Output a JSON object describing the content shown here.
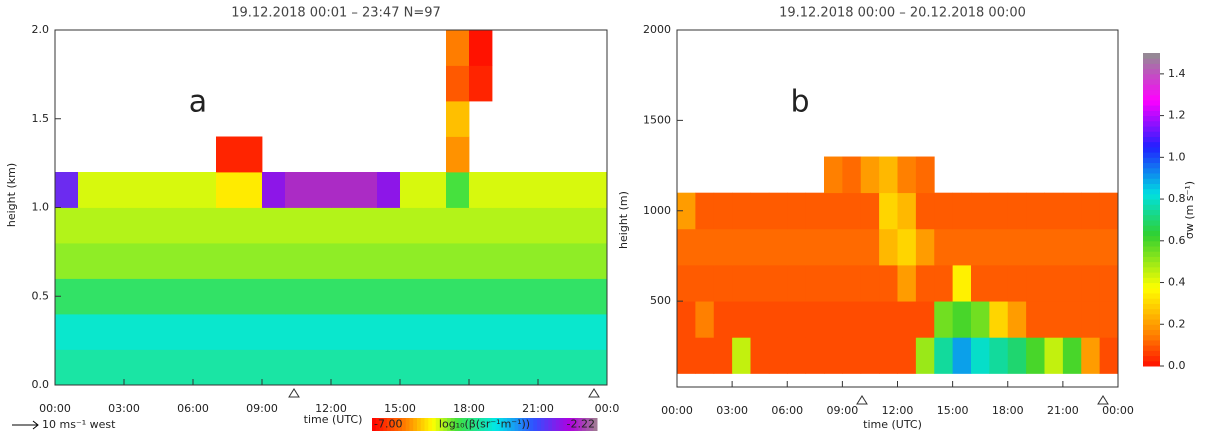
{
  "chart_data": [
    {
      "type": "heatmap",
      "title": "19.12.2018 00:01 – 23:47 N=97",
      "panel_label": "a",
      "x_label": "time (UTC)",
      "y_label": "height (km)",
      "y2_label": "height (m)",
      "wind_scale_label": "10 ms⁻¹ west",
      "xlim": [
        0,
        24
      ],
      "ylim": [
        0,
        2
      ],
      "xticks": [
        {
          "value": 0,
          "label": "00:00"
        },
        {
          "value": 3,
          "label": "03:00"
        },
        {
          "value": 6,
          "label": "06:00"
        },
        {
          "value": 9,
          "label": "09:00"
        },
        {
          "value": 12,
          "label": "12:00"
        },
        {
          "value": 15,
          "label": "15:00"
        },
        {
          "value": 18,
          "label": "18:00"
        },
        {
          "value": 21,
          "label": "21:00"
        },
        {
          "value": 24,
          "label": "00:0"
        }
      ],
      "yticks": [
        {
          "value": 0,
          "label": "0.0"
        },
        0.5,
        {
          "value": 1,
          "label": "1.0"
        },
        1.5,
        {
          "value": 2,
          "label": "2.0"
        }
      ],
      "x_edges": [
        0,
        1,
        2,
        3,
        4,
        5,
        6,
        7,
        8,
        9,
        10,
        11,
        12,
        13,
        14,
        15,
        16,
        17,
        18,
        19,
        20,
        21,
        22,
        23,
        24
      ],
      "y_edges": [
        0,
        0.2,
        0.4,
        0.6,
        0.8,
        1.0,
        1.2,
        1.4,
        1.6,
        1.8,
        2.0
      ],
      "z": [
        [
          -4.7,
          -4.7,
          -4.7,
          -4.7,
          -4.7,
          -4.7,
          -4.7,
          -4.7,
          -4.7,
          -4.7,
          -4.7,
          -4.7,
          -4.7,
          -4.7,
          -4.7,
          -4.7,
          -4.7,
          -4.7,
          -4.7,
          -4.7,
          -4.7,
          -4.7,
          -4.7,
          -4.7
        ],
        [
          -4.5,
          -4.5,
          -4.5,
          -4.5,
          -4.5,
          -4.5,
          -4.5,
          -4.5,
          -4.5,
          -4.5,
          -4.5,
          -4.5,
          -4.5,
          -4.5,
          -4.5,
          -4.5,
          -4.5,
          -4.5,
          -4.5,
          -4.5,
          -4.5,
          -4.5,
          -4.5,
          -4.5
        ],
        [
          -5.0,
          -5.0,
          -5.0,
          -5.0,
          -5.0,
          -5.0,
          -5.0,
          -5.0,
          -5.0,
          -5.0,
          -5.0,
          -5.0,
          -5.0,
          -5.0,
          -5.0,
          -5.0,
          -5.0,
          -5.0,
          -5.0,
          -5.0,
          -5.0,
          -5.0,
          -5.0,
          -5.0
        ],
        [
          -5.4,
          -5.4,
          -5.4,
          -5.4,
          -5.4,
          -5.4,
          -5.4,
          -5.4,
          -5.4,
          -5.4,
          -5.4,
          -5.4,
          -5.4,
          -5.4,
          -5.4,
          -5.4,
          -5.4,
          -5.4,
          -5.4,
          -5.4,
          -5.4,
          -5.4,
          -5.4,
          -5.4
        ],
        [
          -5.5,
          -5.5,
          -5.5,
          -5.5,
          -5.5,
          -5.5,
          -5.5,
          -5.5,
          -5.5,
          -5.5,
          -5.5,
          -5.5,
          -5.5,
          -5.5,
          -5.5,
          -5.5,
          -5.5,
          -5.5,
          -5.5,
          -5.5,
          -5.5,
          -5.5,
          -5.5,
          -5.5
        ],
        [
          -3.2,
          -5.6,
          -5.6,
          -5.6,
          -5.6,
          -5.6,
          -5.6,
          -5.8,
          -5.8,
          -3.0,
          -2.6,
          -2.6,
          -2.6,
          -2.6,
          -3.0,
          -5.6,
          -5.6,
          -5.2,
          -5.6,
          -5.6,
          -5.6,
          -5.6,
          -5.6,
          -5.6
        ],
        [
          null,
          null,
          null,
          null,
          null,
          null,
          null,
          -6.8,
          -6.8,
          null,
          null,
          null,
          null,
          null,
          null,
          null,
          null,
          -6.2,
          null,
          null,
          null,
          null,
          null,
          null
        ],
        [
          null,
          null,
          null,
          null,
          null,
          null,
          null,
          null,
          null,
          null,
          null,
          null,
          null,
          null,
          null,
          null,
          null,
          -6.0,
          null,
          null,
          null,
          null,
          null,
          null
        ],
        [
          null,
          null,
          null,
          null,
          null,
          null,
          null,
          null,
          null,
          null,
          null,
          null,
          null,
          null,
          null,
          null,
          null,
          -6.5,
          -6.8,
          null,
          null,
          null,
          null,
          null
        ],
        [
          null,
          null,
          null,
          null,
          null,
          null,
          null,
          null,
          null,
          null,
          null,
          null,
          null,
          null,
          null,
          null,
          null,
          -6.3,
          -6.9,
          null,
          null,
          null,
          null,
          null
        ]
      ],
      "colorbar": {
        "label": "log₁₀(β(sr⁻¹m⁻¹))",
        "lim": [
          -7,
          -2.22
        ],
        "ticks": [
          {
            "value": -7,
            "label": "-7.00"
          },
          {
            "value": -2.22,
            "label": "-2.22"
          }
        ]
      }
    },
    {
      "type": "heatmap",
      "title": "19.12.2018 00:00 – 20.12.2018 00:00",
      "panel_label": "b",
      "x_label": "time (UTC)",
      "xlim": [
        0,
        24
      ],
      "ylim": [
        25,
        2000
      ],
      "xticks": [
        {
          "value": 0,
          "label": "00:00"
        },
        {
          "value": 3,
          "label": "03:00"
        },
        {
          "value": 6,
          "label": "06:00"
        },
        {
          "value": 9,
          "label": "09:00"
        },
        {
          "value": 12,
          "label": "12:00"
        },
        {
          "value": 15,
          "label": "15:00"
        },
        {
          "value": 18,
          "label": "18:00"
        },
        {
          "value": 21,
          "label": "21:00"
        },
        {
          "value": 24,
          "label": "00:00"
        }
      ],
      "yticks": [
        500,
        1000,
        1500,
        2000
      ],
      "x_edges": [
        0,
        1,
        2,
        3,
        4,
        5,
        6,
        7,
        8,
        9,
        10,
        11,
        12,
        13,
        14,
        15,
        16,
        17,
        18,
        19,
        20,
        21,
        22,
        23,
        24
      ],
      "y_edges": [
        100,
        300,
        500,
        700,
        900,
        1100,
        1300
      ],
      "z": [
        [
          0.08,
          0.08,
          0.08,
          0.45,
          0.08,
          0.08,
          0.08,
          0.08,
          0.08,
          0.08,
          0.08,
          0.08,
          0.08,
          0.5,
          0.75,
          0.9,
          0.8,
          0.75,
          0.7,
          0.6,
          0.45,
          0.6,
          0.2,
          0.08
        ],
        [
          0.08,
          0.15,
          0.08,
          0.08,
          0.08,
          0.08,
          0.08,
          0.08,
          0.08,
          0.08,
          0.08,
          0.08,
          0.08,
          0.08,
          0.55,
          0.6,
          0.55,
          0.3,
          0.2,
          0.1,
          0.1,
          0.1,
          0.1,
          0.1
        ],
        [
          0.1,
          0.1,
          0.1,
          0.1,
          0.1,
          0.1,
          0.1,
          0.1,
          0.1,
          0.1,
          0.1,
          0.1,
          0.2,
          0.1,
          0.1,
          0.35,
          0.1,
          0.1,
          0.1,
          0.1,
          0.1,
          0.1,
          0.1,
          0.1
        ],
        [
          0.12,
          0.12,
          0.12,
          0.12,
          0.12,
          0.12,
          0.12,
          0.12,
          0.12,
          0.12,
          0.12,
          0.25,
          0.3,
          0.2,
          0.12,
          0.12,
          0.12,
          0.12,
          0.12,
          0.12,
          0.12,
          0.12,
          0.12,
          0.12
        ],
        [
          0.2,
          0.1,
          0.1,
          0.1,
          0.1,
          0.1,
          0.1,
          0.1,
          0.1,
          0.1,
          0.1,
          0.3,
          0.25,
          0.1,
          0.1,
          0.1,
          0.1,
          0.1,
          0.1,
          0.1,
          0.1,
          0.1,
          0.1,
          0.1
        ],
        [
          null,
          null,
          null,
          null,
          null,
          null,
          null,
          null,
          0.15,
          0.12,
          0.2,
          0.25,
          0.15,
          0.12,
          null,
          null,
          null,
          null,
          null,
          null,
          null,
          null,
          null,
          null
        ]
      ],
      "colorbar": {
        "label": "σw (m s⁻¹)",
        "lim": [
          0,
          1.5
        ],
        "ticks": [
          {
            "value": 0,
            "label": "0.0"
          },
          0.2,
          0.4,
          0.6,
          0.8,
          {
            "value": 1,
            "label": "1.0"
          },
          1.2,
          1.4
        ]
      }
    }
  ]
}
